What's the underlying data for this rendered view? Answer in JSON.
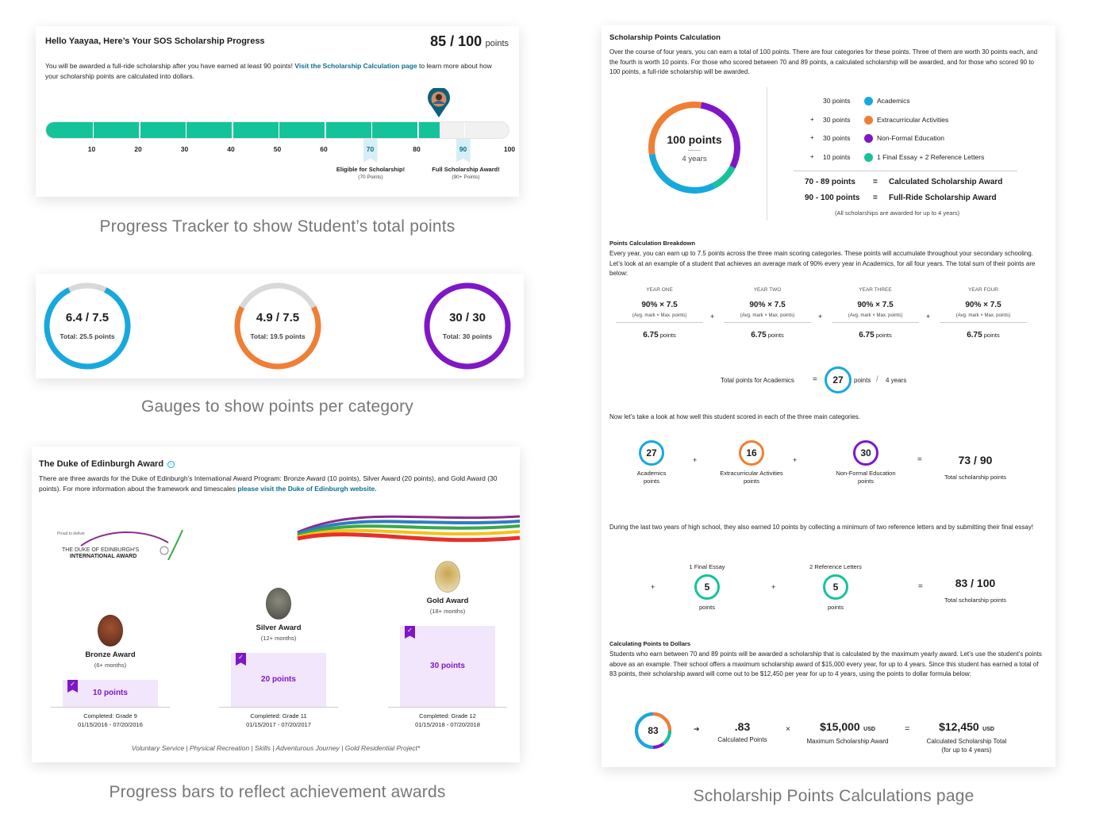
{
  "colors": {
    "teal": "#15c39a",
    "blue": "#17a8de",
    "orange": "#f07e34",
    "purple": "#7f17c6",
    "link": "#0b6f8e",
    "gray": "#d6d6d6"
  },
  "tracker": {
    "title": "Hello Yaayaa, Here’s Your SOS Scholarship Progress",
    "score": "85 / 100",
    "score_unit": "points",
    "desc_a": "You will be awarded a full-ride scholarship after you have earned at least 90 points! ",
    "desc_link": "Visit the Scholarship Calculation page",
    "desc_b": " to learn more about how your scholarship points are calculated into dollars.",
    "progress": 85,
    "ticks": [
      "10",
      "20",
      "30",
      "40",
      "50",
      "60",
      "70",
      "80",
      "90",
      "100"
    ],
    "milestone1_title": "Eligible for Scholarship!",
    "milestone1_sub": "(70 Points)",
    "milestone2_title": "Full Scholarship Award!",
    "milestone2_sub": "(90+ Points)",
    "caption": "Progress Tracker to show Student’s total points"
  },
  "gauges": {
    "items": [
      {
        "value": "6.4 / 7.5",
        "total": "Total: 25.5 points",
        "fraction": 0.853,
        "color": "#17a8de"
      },
      {
        "value": "4.9 / 7.5",
        "total": "Total: 19.5 points",
        "fraction": 0.653,
        "color": "#f07e34"
      },
      {
        "value": "30 / 30",
        "total": "Total: 30 points",
        "fraction": 1.0,
        "color": "#7f17c6"
      }
    ],
    "caption": "Gauges to show points per category"
  },
  "duke": {
    "title": "The Duke of Edinburgh Award",
    "desc_a": "There are three awards for the Duke of Edinburgh’s International Award Program: Bronze Award (10 points), Silver Award (20 points), and Gold Award (30 points). For more information about the framework and timescales ",
    "desc_link": "please visit the Duke of Edinburgh website.",
    "logo_small": "Proud to deliver",
    "logo_line1": "THE DUKE OF EDINBURGH’S",
    "logo_line2": "INTERNATIONAL AWARD",
    "awards": [
      {
        "name": "Bronze Award",
        "months": "(6+ months)",
        "points": "10 points",
        "fill": 0.333,
        "completed": "Completed: Grade 9",
        "dates": "01/15/2016 - 07/20/2016"
      },
      {
        "name": "Silver Award",
        "months": "(12+ months)",
        "points": "20 points",
        "fill": 0.667,
        "completed": "Completed: Grade 11",
        "dates": "01/15/2017 - 07/20/2017"
      },
      {
        "name": "Gold Award",
        "months": "(18+ months)",
        "points": "30 points",
        "fill": 1.0,
        "completed": "Completed: Grade 12",
        "dates": "01/15/2018 - 07/20/2018"
      }
    ],
    "footer": "Voluntary Service | Physical Recreation | Skills | Adventurous Journey | Gold Residential Project*",
    "caption": "Progress bars to reflect achievement awards"
  },
  "calc": {
    "title": "Scholarship Points Calculation",
    "intro": "Over the course of four years, you can earn a total of 100 points. There are four categories for these points. Three of them are worth 30 points each, and the fourth is worth 10 points. For those who scored between 70 and 89 points, a calculated scholarship will be awarded, and for those who scored 90 to 100 points, a full-ride scholarship will be awarded.",
    "donut_value": "100 points",
    "donut_sub": "4 years",
    "donut_segments": [
      30,
      30,
      30,
      10
    ],
    "legend": [
      {
        "op": "",
        "points": "30 points",
        "label": "Academics",
        "color": "#17a8de"
      },
      {
        "op": "+",
        "points": "30 points",
        "label": "Extracurricular Activities",
        "color": "#f07e34"
      },
      {
        "op": "+",
        "points": "30 points",
        "label": "Non-Formal Education",
        "color": "#7f17c6"
      },
      {
        "op": "+",
        "points": "10 points",
        "label": "1 Final Essay + 2 Reference Letters",
        "color": "#15c39a"
      }
    ],
    "rule1_range": "70 - 89 points",
    "rule1_eq": "=",
    "rule1_label": "Calculated Scholarship Award",
    "rule2_range": "90 - 100 points",
    "rule2_eq": "=",
    "rule2_label": "Full-Ride Scholarship Award",
    "rule_note": "(All scholarships are awarded for up to 4 years)",
    "breakdown_title": "Points Calculation Breakdown",
    "breakdown_text": "Every year, you can earn up to 7.5 points across the three main scoring categories. These points will accumulate throughout your secondary schooling. Let’s look at an example of a student that achieves an average mark of 90% every year in Academics, for all four years. The total sum of their points are below:",
    "years": [
      {
        "label": "YEAR ONE",
        "formula": "90% × 7.5",
        "note": "(Avg. mark × Max. points)",
        "result": "6.75",
        "unit": "points"
      },
      {
        "label": "YEAR TWO",
        "formula": "90% × 7.5",
        "note": "(Avg. mark × Max. points)",
        "result": "6.75",
        "unit": "points"
      },
      {
        "label": "YEAR THREE",
        "formula": "90% × 7.5",
        "note": "(Avg. mark × Max. points)",
        "result": "6.75",
        "unit": "points"
      },
      {
        "label": "YEAR FOUR",
        "formula": "90% × 7.5",
        "note": "(Avg. mark × Max. points)",
        "result": "6.75",
        "unit": "points"
      }
    ],
    "plus": "+",
    "academics_total_label": "Total points for Academics",
    "academics_eq": "=",
    "academics_total": "27",
    "academics_unit": "points",
    "academics_years": "4 years",
    "categories_text": "Now let’s take a look at how well this student scored in each of the three main categories.",
    "categories": [
      {
        "value": "27",
        "label1": "Academics",
        "label2": "points",
        "color": "#17a8de"
      },
      {
        "value": "16",
        "label1": "Extracurricular Activities",
        "label2": "points",
        "color": "#f07e34"
      },
      {
        "value": "30",
        "label1": "Non-Formal Education",
        "label2": "points",
        "color": "#7f17c6"
      }
    ],
    "categories_total": "73 / 90",
    "categories_total_label": "Total scholarship points",
    "essay_text": "During the last two years of high school, they also earned 10 points by collecting a minimum of two reference letters and by submitting their final essay!",
    "essay": [
      {
        "title": "1 Final Essay",
        "value": "5",
        "unit": "points"
      },
      {
        "title": "2 Reference Letters",
        "value": "5",
        "unit": "points"
      }
    ],
    "essay_total": "83 / 100",
    "essay_total_label": "Total scholarship points",
    "dollars_title": "Calculating Points to Dollars",
    "dollars_text": "Students who earn between 70 and 89 points will be awarded a scholarship that is calculated by the maximum yearly award. Let’s use the student’s points above as an example. Their school offers a maximum scholarship award of $15,000 every year, for up to 4 years. Since this student has earned a total of 83 points, their scholarship award will come out to be $12,450 per year for up to 4 years, using the points to dollar formula below:",
    "dollar_circle": "83",
    "arrow": "➔",
    "times": "×",
    "eq": "=",
    "calc_points": ".83",
    "calc_points_label": "Calculated Points",
    "max_award": "$15,000",
    "max_award_unit": "USD",
    "max_award_label": "Maximum Scholarship Award",
    "total_award": "$12,450",
    "total_award_unit": "USD",
    "total_award_label": "Calculated Scholarship Total",
    "total_award_sub": "(for up to 4 years)",
    "caption": "Scholarship Points Calculations page"
  }
}
